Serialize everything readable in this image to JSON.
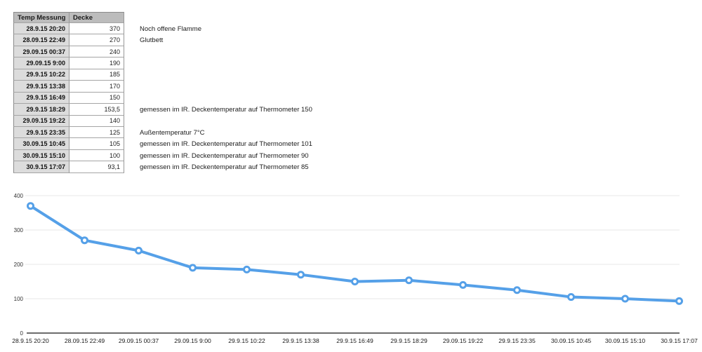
{
  "table": {
    "headers": [
      "Temp Messung",
      "Decke"
    ],
    "rows": [
      {
        "date": "28.9.15 20:20",
        "value": "370",
        "note": "Noch offene Flamme"
      },
      {
        "date": "28.09.15 22:49",
        "value": "270",
        "note": "Glutbett"
      },
      {
        "date": "29.09.15 00:37",
        "value": "240",
        "note": ""
      },
      {
        "date": "29.09.15 9:00",
        "value": "190",
        "note": ""
      },
      {
        "date": "29.9.15 10:22",
        "value": "185",
        "note": ""
      },
      {
        "date": "29.9.15 13:38",
        "value": "170",
        "note": ""
      },
      {
        "date": "29.9.15 16:49",
        "value": "150",
        "note": ""
      },
      {
        "date": "29.9.15 18:29",
        "value": "153,5",
        "note": "gemessen im IR. Deckentemperatur auf Thermometer 150"
      },
      {
        "date": "29.09.15 19:22",
        "value": "140",
        "note": ""
      },
      {
        "date": "29.9.15 23:35",
        "value": "125",
        "note": "Außentemperatur 7°C"
      },
      {
        "date": "30.09.15 10:45",
        "value": "105",
        "note": "gemessen im IR. Deckentemperatur auf Thermometer 101"
      },
      {
        "date": "30.09.15 15:10",
        "value": "100",
        "note": "gemessen im IR. Deckentemperatur auf Thermometer 90"
      },
      {
        "date": "30.9.15 17:07",
        "value": "93,1",
        "note": "gemessen im IR. Deckentemperatur auf Thermometer 85"
      }
    ]
  },
  "chart_data": {
    "type": "line",
    "series_name": "Decke",
    "categories": [
      "28.9.15 20:20",
      "28.09.15 22:49",
      "29.09.15 00:37",
      "29.09.15 9:00",
      "29.9.15 10:22",
      "29.9.15 13:38",
      "29.9.15 16:49",
      "29.9.15 18:29",
      "29.09.15 19:22",
      "29.9.15 23:35",
      "30.09.15 10:45",
      "30.09.15 15:10",
      "30.9.15 17:07"
    ],
    "values": [
      370,
      270,
      240,
      190,
      185,
      170,
      150,
      153.5,
      140,
      125,
      105,
      100,
      93.1
    ],
    "title": "",
    "xlabel": "",
    "ylabel": "",
    "ylim": [
      0,
      400
    ],
    "yticks": [
      0,
      100,
      200,
      300,
      400
    ],
    "grid": true,
    "legend": "none"
  },
  "colors": {
    "line": "#55a0e8",
    "marker_fill": "#ffffff",
    "gridline": "#e7e7e7",
    "axis": "#3c3c3c",
    "table_header_bg": "#bcbcbc",
    "table_date_bg": "#dcdcdc",
    "tick_label": "#333333",
    "x_label": "#1a1a1a"
  }
}
